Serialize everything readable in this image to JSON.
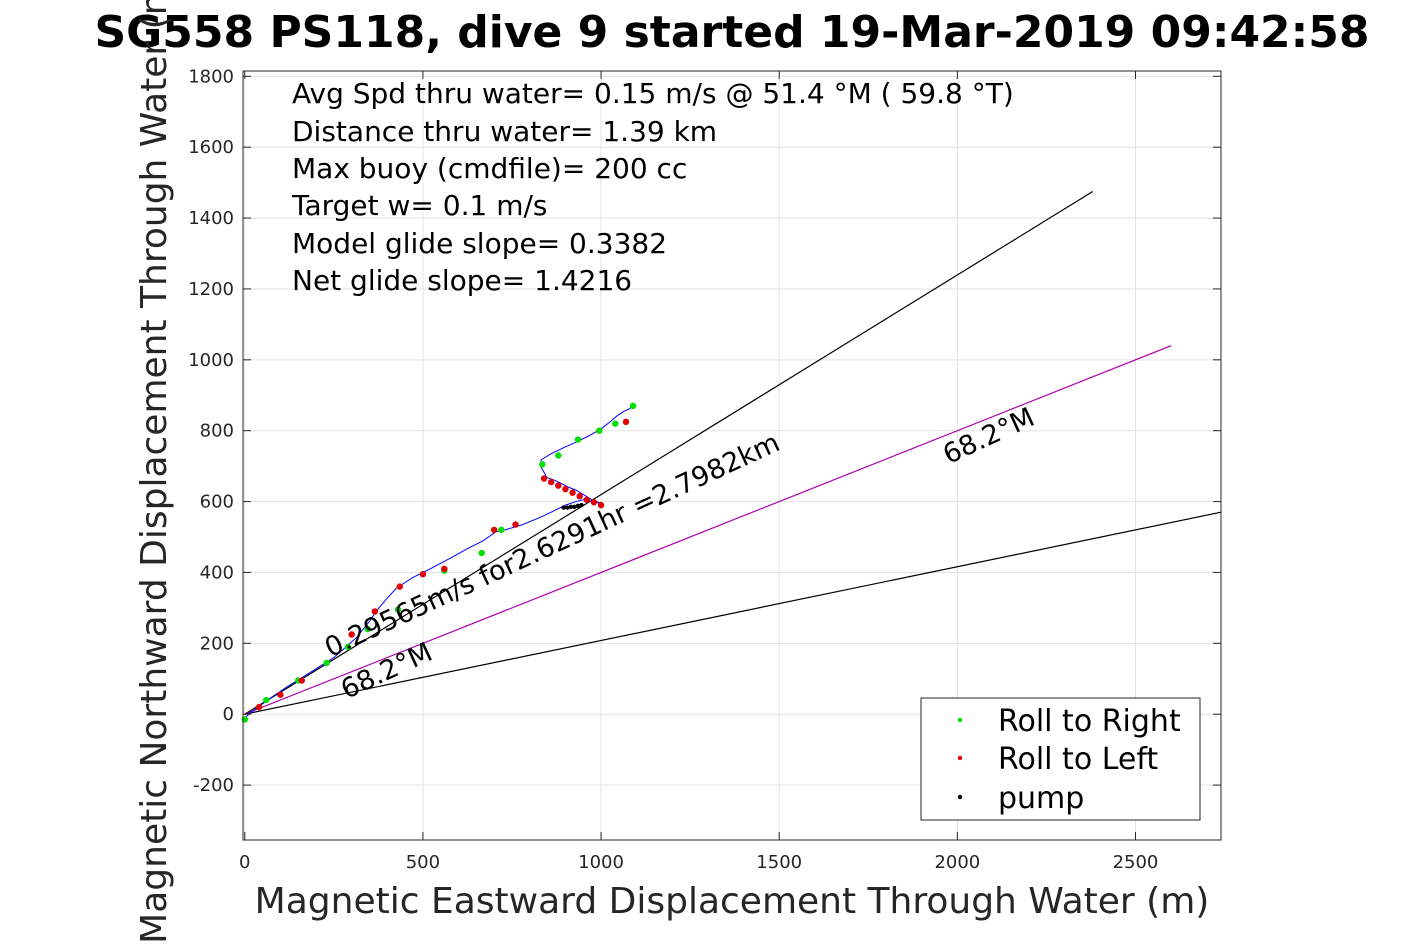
{
  "chart_data": {
    "type": "line",
    "title": "SG558 PS118, dive 9 started 19-Mar-2019 09:42:58",
    "xlabel": "Magnetic Eastward Displacement Through Water (m)",
    "ylabel": "Magnetic Northward Displacement Through Water (m)",
    "xlim": [
      -5,
      2740
    ],
    "ylim": [
      -355,
      1815
    ],
    "xticks": [
      0,
      500,
      1000,
      1500,
      2000,
      2500
    ],
    "yticks": [
      -200,
      0,
      200,
      400,
      600,
      800,
      1000,
      1200,
      1400,
      1600,
      1800
    ],
    "grid": true,
    "info_lines": [
      "Avg Spd thru water=  0.15 m/s @  51.4 °M ( 59.8 °T)",
      "Distance thru water=  1.39 km",
      "Max buoy (cmdfile)= 200 cc",
      "Target w= 0.1 m/s",
      "Model glide slope= 0.3382",
      "Net glide slope= 1.4216"
    ],
    "reference_lines": [
      {
        "name": "upper bound",
        "color": "#000000",
        "x": [
          0,
          2380
        ],
        "y": [
          0,
          1475
        ]
      },
      {
        "name": "course 68.2°M",
        "color": "#b000b0",
        "x": [
          0,
          2600
        ],
        "y": [
          0,
          1040
        ]
      },
      {
        "name": "lower bound",
        "color": "#000000",
        "x": [
          0,
          2740
        ],
        "y": [
          0,
          570
        ]
      }
    ],
    "annotations": [
      {
        "text": "0.29565m/s for2.6291hr =2.7982km",
        "x": 240,
        "y": 160,
        "angle_deg": 24.8
      },
      {
        "text": "68.2°M",
        "x": 285,
        "y": 42,
        "angle_deg": 24.8
      },
      {
        "text": "68.2°M",
        "x": 1975,
        "y": 705,
        "angle_deg": 24.8
      }
    ],
    "series": [
      {
        "name": "track",
        "color": "#0000ff",
        "x": [
          0,
          18,
          40,
          62,
          90,
          120,
          155,
          200,
          250,
          290,
          315,
          350,
          370,
          395,
          425,
          470,
          520,
          580,
          630,
          670,
          705,
          730,
          780,
          835,
          870,
          900,
          930,
          950,
          965,
          985,
          1000,
          975,
          950,
          930,
          910,
          890,
          870,
          848,
          830,
          832,
          860,
          895,
          930,
          965,
          1000,
          1025,
          1045,
          1065,
          1080,
          1090
        ],
        "y": [
          -10,
          5,
          22,
          38,
          58,
          78,
          100,
          128,
          160,
          195,
          218,
          262,
          292,
          322,
          355,
          385,
          410,
          442,
          470,
          490,
          515,
          520,
          535,
          558,
          575,
          590,
          600,
          605,
          602,
          598,
          595,
          605,
          620,
          632,
          640,
          650,
          660,
          668,
          700,
          718,
          735,
          752,
          768,
          785,
          805,
          825,
          842,
          855,
          862,
          870
        ]
      },
      {
        "name": "Roll to Right",
        "color": "#00e000",
        "x": [
          0,
          60,
          150,
          230,
          290,
          345,
          430,
          560,
          665,
          720,
          835,
          880,
          935,
          995,
          1040,
          1090
        ],
        "y": [
          -15,
          40,
          95,
          145,
          190,
          240,
          295,
          405,
          455,
          520,
          705,
          730,
          775,
          800,
          820,
          870
        ]
      },
      {
        "name": "Roll to Left",
        "color": "#e00000",
        "x": [
          40,
          100,
          160,
          300,
          365,
          435,
          500,
          560,
          700,
          760,
          840,
          860,
          880,
          900,
          920,
          940,
          960,
          980,
          1000,
          1070
        ],
        "y": [
          20,
          55,
          95,
          225,
          290,
          360,
          395,
          410,
          520,
          535,
          665,
          655,
          645,
          635,
          625,
          615,
          605,
          598,
          590,
          825
        ]
      },
      {
        "name": "pump",
        "color": "#000000",
        "x": [
          895,
          905,
          915,
          925,
          935,
          945
        ],
        "y": [
          583,
          583,
          585,
          585,
          588,
          590
        ]
      }
    ],
    "legend": {
      "position": "bottom-right",
      "entries": [
        {
          "label": "Roll to Right",
          "color": "#00e000"
        },
        {
          "label": "Roll to Left",
          "color": "#e00000"
        },
        {
          "label": "pump",
          "color": "#000000"
        }
      ]
    }
  }
}
